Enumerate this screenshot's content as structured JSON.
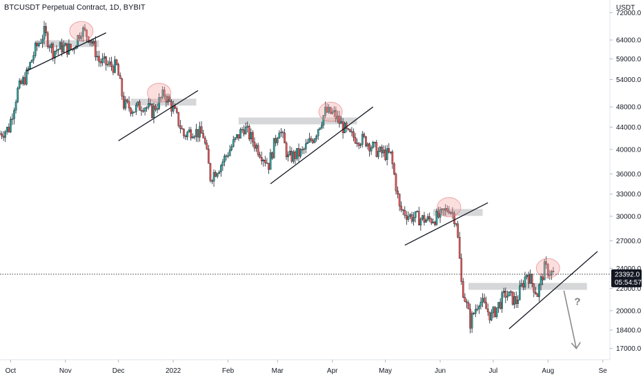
{
  "header": {
    "title": "BTCUSDT Perpetual Contract, 1D, BYBIT",
    "unit": "USDT"
  },
  "price_badge": {
    "price": "23392.0",
    "countdown": "05:54:57"
  },
  "annotation": {
    "question": "?"
  },
  "colors": {
    "up": "#26a69a",
    "down": "#ef5350",
    "candle": "#131722",
    "zone": "#c8c9cc",
    "circle": "#f4a3a3"
  },
  "chart_data": {
    "type": "candlestick",
    "symbol": "BTCUSDT Perpetual Contract",
    "timeframe": "1D",
    "exchange": "BYBIT",
    "scale": "log",
    "ylim": [
      16200,
      76000
    ],
    "xlim": [
      "2021-09-25",
      "2022-09-05"
    ],
    "y_ticks": [
      {
        "value": 72000,
        "label": "72000.0"
      },
      {
        "value": 64000,
        "label": "64000.0"
      },
      {
        "value": 59000,
        "label": "59000.0"
      },
      {
        "value": 54000,
        "label": "54000.0"
      },
      {
        "value": 48000,
        "label": "48000.0"
      },
      {
        "value": 44000,
        "label": "44000.0"
      },
      {
        "value": 40000,
        "label": "40000.0"
      },
      {
        "value": 36000,
        "label": "36000.0"
      },
      {
        "value": 33000,
        "label": "33000.0"
      },
      {
        "value": 30000,
        "label": "30000.0"
      },
      {
        "value": 27000,
        "label": "27000.0"
      },
      {
        "value": 24000,
        "label": "24000.0"
      },
      {
        "value": 22000,
        "label": "22000.0"
      },
      {
        "value": 20000,
        "label": "20000.0"
      },
      {
        "value": 18400,
        "label": "18400.0"
      },
      {
        "value": 17000,
        "label": "17000.0"
      }
    ],
    "x_ticks": [
      {
        "date": "2021-10-01",
        "label": "Oct"
      },
      {
        "date": "2021-11-01",
        "label": "Nov"
      },
      {
        "date": "2021-12-01",
        "label": "Dec"
      },
      {
        "date": "2022-01-01",
        "label": "2022"
      },
      {
        "date": "2022-02-01",
        "label": "Feb"
      },
      {
        "date": "2022-03-01",
        "label": "Mar"
      },
      {
        "date": "2022-04-01",
        "label": "Apr"
      },
      {
        "date": "2022-05-01",
        "label": "May"
      },
      {
        "date": "2022-06-01",
        "label": "Jun"
      },
      {
        "date": "2022-07-01",
        "label": "Jul"
      },
      {
        "date": "2022-08-01",
        "label": "Aug"
      },
      {
        "date": "2022-09-01",
        "label": "Se"
      }
    ],
    "current_price": 23392,
    "close_path": [
      [
        "2021-09-25",
        42800
      ],
      [
        "2021-09-30",
        43800
      ],
      [
        "2021-10-05",
        51500
      ],
      [
        "2021-10-10",
        55000
      ],
      [
        "2021-10-15",
        61500
      ],
      [
        "2021-10-20",
        66000
      ],
      [
        "2021-10-25",
        61000
      ],
      [
        "2021-10-30",
        62000
      ],
      [
        "2021-11-05",
        61500
      ],
      [
        "2021-11-10",
        67000
      ],
      [
        "2021-11-15",
        64500
      ],
      [
        "2021-11-20",
        58500
      ],
      [
        "2021-11-25",
        57500
      ],
      [
        "2021-11-30",
        57000
      ],
      [
        "2021-12-04",
        48500
      ],
      [
        "2021-12-10",
        47500
      ],
      [
        "2021-12-15",
        48500
      ],
      [
        "2021-12-20",
        47000
      ],
      [
        "2021-12-27",
        50800
      ],
      [
        "2022-01-01",
        47500
      ],
      [
        "2022-01-07",
        42500
      ],
      [
        "2022-01-12",
        43500
      ],
      [
        "2022-01-18",
        42500
      ],
      [
        "2022-01-22",
        35500
      ],
      [
        "2022-01-28",
        37500
      ],
      [
        "2022-02-05",
        41500
      ],
      [
        "2022-02-10",
        44000
      ],
      [
        "2022-02-17",
        40500
      ],
      [
        "2022-02-24",
        37500
      ],
      [
        "2022-03-02",
        44000
      ],
      [
        "2022-03-07",
        38500
      ],
      [
        "2022-03-15",
        39500
      ],
      [
        "2022-03-22",
        42500
      ],
      [
        "2022-03-28",
        47000
      ],
      [
        "2022-04-02",
        46500
      ],
      [
        "2022-04-10",
        42500
      ],
      [
        "2022-04-20",
        41500
      ],
      [
        "2022-04-27",
        39500
      ],
      [
        "2022-05-04",
        39000
      ],
      [
        "2022-05-09",
        31000
      ],
      [
        "2022-05-15",
        30000
      ],
      [
        "2022-05-25",
        29500
      ],
      [
        "2022-06-01",
        30000
      ],
      [
        "2022-06-06",
        31200
      ],
      [
        "2022-06-10",
        29500
      ],
      [
        "2022-06-13",
        22500
      ],
      [
        "2022-06-18",
        19000
      ],
      [
        "2022-06-23",
        21000
      ],
      [
        "2022-06-30",
        19500
      ],
      [
        "2022-07-08",
        21500
      ],
      [
        "2022-07-14",
        20800
      ],
      [
        "2022-07-20",
        23500
      ],
      [
        "2022-07-26",
        21500
      ],
      [
        "2022-07-30",
        24000
      ],
      [
        "2022-08-04",
        23392
      ]
    ],
    "annotations": {
      "zones": [
        {
          "from": "2021-10-19",
          "to": "2021-11-20",
          "price": 63000
        },
        {
          "from": "2021-12-08",
          "to": "2022-01-14",
          "price": 49000
        },
        {
          "from": "2022-02-07",
          "to": "2022-04-15",
          "price": 45200
        },
        {
          "from": "2022-05-28",
          "to": "2022-06-25",
          "price": 30500
        },
        {
          "from": "2022-06-17",
          "to": "2022-08-23",
          "price": 22200
        }
      ],
      "trendlines": [
        {
          "from": [
            "2021-10-10",
            56000
          ],
          "to": [
            "2021-11-24",
            66000
          ]
        },
        {
          "from": [
            "2021-12-01",
            41500
          ],
          "to": [
            "2022-01-15",
            51500
          ]
        },
        {
          "from": [
            "2022-02-25",
            34500
          ],
          "to": [
            "2022-04-24",
            48000
          ]
        },
        {
          "from": [
            "2022-05-12",
            26500
          ],
          "to": [
            "2022-06-28",
            31800
          ]
        },
        {
          "from": [
            "2022-07-10",
            18500
          ],
          "to": [
            "2022-08-29",
            25800
          ]
        }
      ],
      "highlight_circles": [
        {
          "date": "2021-11-10",
          "price": 66500
        },
        {
          "date": "2021-12-24",
          "price": 51000
        },
        {
          "date": "2022-03-31",
          "price": 47000
        },
        {
          "date": "2022-06-06",
          "price": 31200
        },
        {
          "date": "2022-08-01",
          "price": 24000
        }
      ],
      "forecast_arrow": {
        "from": [
          "2022-08-10",
          21800
        ],
        "to": [
          "2022-08-17",
          17000
        ],
        "label": "?"
      }
    }
  }
}
